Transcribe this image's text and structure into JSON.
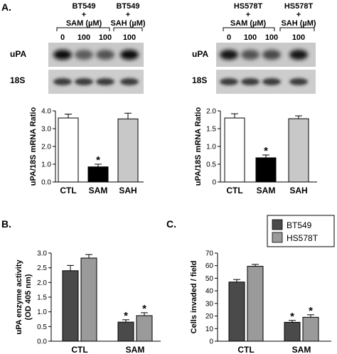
{
  "panel_labels": {
    "a": "A.",
    "b": "B.",
    "c": "C."
  },
  "blots": [
    {
      "header": {
        "group1": [
          "BT549",
          "+",
          "SAM (µM)"
        ],
        "group2": [
          "BT549",
          "+",
          "SAH (µM)"
        ],
        "lane_labels": [
          "0",
          "100",
          "100",
          "100"
        ]
      },
      "row_labels": [
        "uPA",
        "18S"
      ],
      "upa_intensity": [
        1.0,
        0.55,
        0.6,
        1.0
      ]
    },
    {
      "header": {
        "group1": [
          "HS578T",
          "+",
          "SAM (µM)"
        ],
        "group2": [
          "HS578T",
          "+",
          "SAH (µM)"
        ],
        "lane_labels": [
          "0",
          "100",
          "100",
          "100"
        ]
      },
      "row_labels": [
        "uPA",
        "18S"
      ],
      "upa_intensity": [
        0.95,
        0.6,
        0.65,
        0.95
      ]
    }
  ],
  "chart_data": [
    {
      "type": "bar",
      "categories": [
        "CTL",
        "SAM",
        "SAH"
      ],
      "values": [
        3.6,
        0.85,
        3.55
      ],
      "errors": [
        0.22,
        0.15,
        0.32
      ],
      "bar_colors": [
        "#ffffff",
        "#000000",
        "#c8c8c8"
      ],
      "significance": [
        "",
        "*",
        ""
      ],
      "ylabel": "uPA/18S mRNA Ratio",
      "ylim": [
        0,
        4.0
      ],
      "yticks": [
        "0.0",
        "1.0",
        "2.0",
        "3.0",
        "4.0"
      ]
    },
    {
      "type": "bar",
      "categories": [
        "CTL",
        "SAM",
        "SAH"
      ],
      "values": [
        1.8,
        0.68,
        1.78
      ],
      "errors": [
        0.12,
        0.08,
        0.08
      ],
      "bar_colors": [
        "#ffffff",
        "#000000",
        "#c8c8c8"
      ],
      "significance": [
        "",
        "*",
        ""
      ],
      "ylabel": "uPA/18S mRNA Ratio",
      "ylim": [
        0,
        2.0
      ],
      "yticks": [
        "0",
        "0.5",
        "1.0",
        "1.5",
        "2.0"
      ]
    },
    {
      "type": "bar",
      "categories": [
        "CTL",
        "SAM"
      ],
      "series": [
        {
          "name": "BT549",
          "values": [
            2.4,
            0.65
          ],
          "errors": [
            0.18,
            0.08
          ],
          "significance": [
            "",
            "*"
          ]
        },
        {
          "name": "HS578T",
          "values": [
            2.83,
            0.87
          ],
          "errors": [
            0.12,
            0.1
          ],
          "significance": [
            "",
            "*"
          ]
        }
      ],
      "ylabel": [
        "uPA enzyme activity",
        "(OD 405 nm)"
      ],
      "ylim": [
        0,
        3.0
      ],
      "yticks": [
        "0.0",
        "0.5",
        "1.0",
        "1.5",
        "2.0",
        "2.5",
        "3.0"
      ]
    },
    {
      "type": "bar",
      "categories": [
        "CTL",
        "SAM"
      ],
      "series": [
        {
          "name": "BT549",
          "values": [
            47,
            15
          ],
          "errors": [
            2.0,
            1.5
          ],
          "significance": [
            "",
            "*"
          ]
        },
        {
          "name": "HS578T",
          "values": [
            59.5,
            19
          ],
          "errors": [
            1.5,
            2.0
          ],
          "significance": [
            "",
            "*"
          ]
        }
      ],
      "ylabel": "Cells invaded / field",
      "ylim": [
        0,
        70
      ],
      "yticks": [
        "0",
        "10",
        "20",
        "30",
        "40",
        "50",
        "60",
        "70"
      ]
    }
  ],
  "legend": {
    "placement": "top-right",
    "items": [
      {
        "name": "BT549",
        "color": "#4a4a4a"
      },
      {
        "name": "HS578T",
        "color": "#9a9a9a"
      }
    ]
  }
}
